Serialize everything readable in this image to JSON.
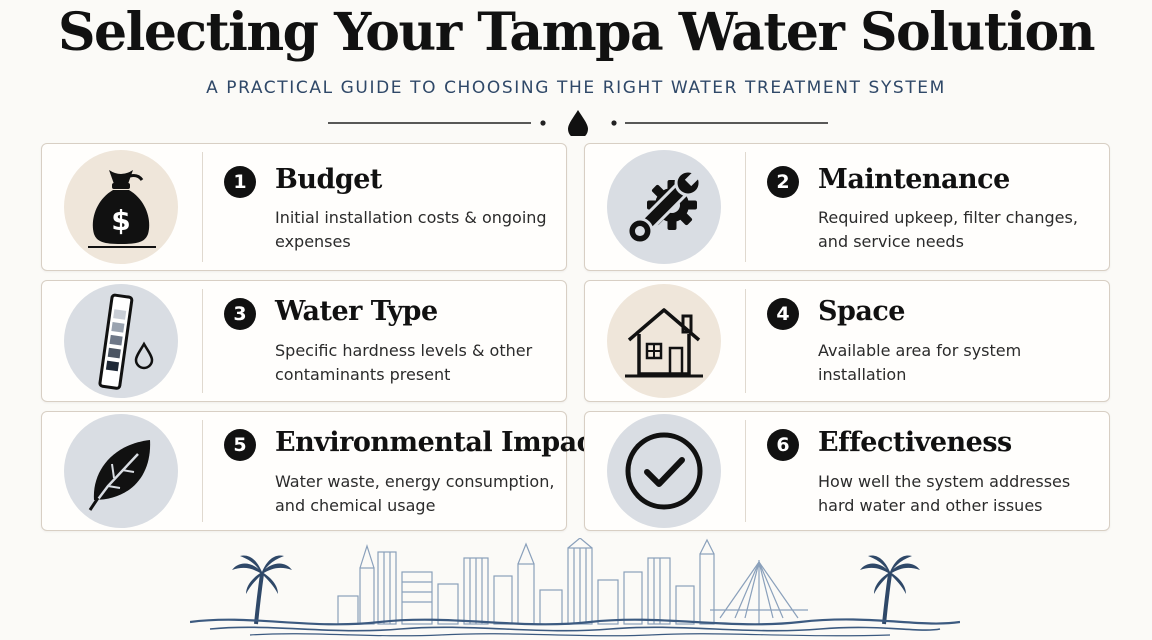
{
  "header": {
    "title": "Selecting Your Tampa Water Solution",
    "subtitle": "A PRACTICAL GUIDE TO CHOOSING THE RIGHT WATER TREATMENT SYSTEM"
  },
  "cards": [
    {
      "number": "1",
      "heading": "Budget",
      "description": "Initial installation costs & ongoing expenses",
      "icon": "money-bag-icon",
      "icon_bg": "#efe6da"
    },
    {
      "number": "2",
      "heading": "Maintenance",
      "description": "Required upkeep, filter changes, and service needs",
      "icon": "wrench-gear-icon",
      "icon_bg": "#d9dde3"
    },
    {
      "number": "3",
      "heading": "Water Type",
      "description": "Specific hardness levels & other contaminants present",
      "icon": "test-strip-icon",
      "icon_bg": "#d9dde3"
    },
    {
      "number": "4",
      "heading": "Space",
      "description": "Available area for system installation",
      "icon": "house-icon",
      "icon_bg": "#efe6da"
    },
    {
      "number": "5",
      "heading": "Environmental Impact",
      "description": "Water waste, energy consumption, and chemical usage",
      "icon": "leaf-icon",
      "icon_bg": "#d9dde3"
    },
    {
      "number": "6",
      "heading": "Effectiveness",
      "description": "How well the system addresses hard water and other issues",
      "icon": "checkmark-icon",
      "icon_bg": "#d9dde3"
    }
  ],
  "colors": {
    "accent_navy": "#2f4868",
    "skyline_blue": "#8aa0bb",
    "wave_blue": "#3c5a80"
  }
}
